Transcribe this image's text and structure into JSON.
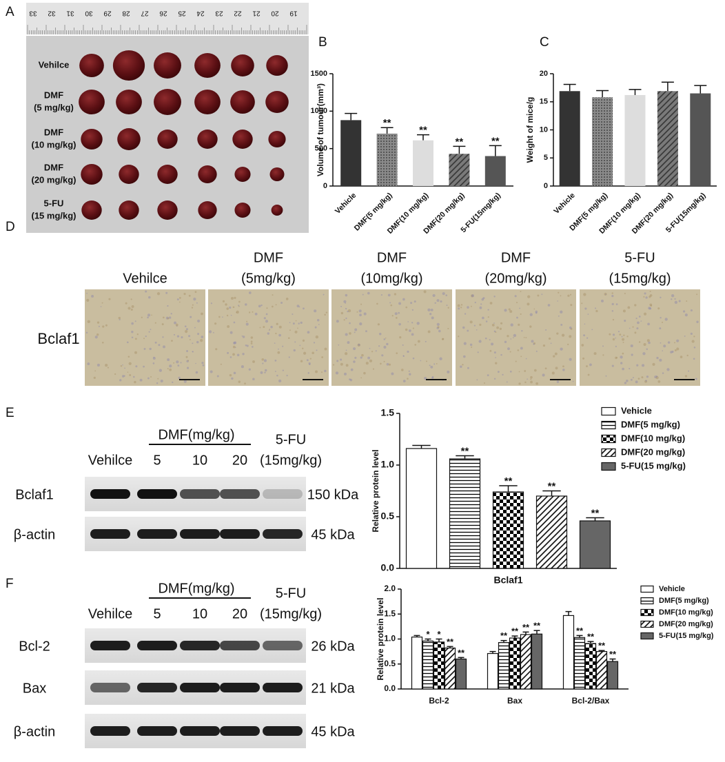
{
  "panel_labels": [
    "A",
    "B",
    "C",
    "D",
    "E",
    "F"
  ],
  "panel_a": {
    "ruler": [
      "33",
      "32",
      "31",
      "30",
      "29",
      "28",
      "27",
      "26",
      "25",
      "24",
      "23",
      "22",
      "21",
      "20",
      "19"
    ],
    "rows": [
      [
        "Vehilce"
      ],
      [
        "DMF",
        "(5 mg/kg)"
      ],
      [
        "DMF",
        "(10 mg/kg)"
      ],
      [
        "DMF",
        "(20 mg/kg)"
      ],
      [
        "5-FU",
        "(15 mg/kg)"
      ]
    ]
  },
  "panel_d": {
    "columns": [
      [
        "Vehilce"
      ],
      [
        "DMF",
        "(5mg/kg)"
      ],
      [
        "DMF",
        "(10mg/kg)"
      ],
      [
        "DMF",
        "(20mg/kg)"
      ],
      [
        "5-FU",
        "(15mg/kg)"
      ]
    ],
    "row_label": "Bclaf1"
  },
  "panel_e_blot": {
    "group": "DMF(mg/kg)",
    "lanes": [
      "Vehilce",
      "5",
      "10",
      "20"
    ],
    "last_lane": [
      "5-FU",
      "(15mg/kg)"
    ],
    "rows": [
      {
        "name": "Bclaf1",
        "size": "150 kDa"
      },
      {
        "name": "β-actin",
        "size": "45 kDa"
      }
    ]
  },
  "panel_f_blot": {
    "group": "DMF(mg/kg)",
    "lanes": [
      "Vehilce",
      "5",
      "10",
      "20"
    ],
    "last_lane": [
      "5-FU",
      "(15mg/kg)"
    ],
    "rows": [
      {
        "name": "Bcl-2",
        "size": "26 kDa"
      },
      {
        "name": "Bax",
        "size": "21 kDa"
      },
      {
        "name": "β-actin",
        "size": "45 kDa"
      }
    ]
  },
  "chart_data": [
    {
      "type": "bar",
      "ylabel": "Volume of tumour(mm³)",
      "categories": [
        "Vehicle",
        "DMF(5 mg/kg)",
        "DMF(10 mg/kg)",
        "DMF(20 mg/kg)",
        "5-FU(15mg/kg)"
      ],
      "values": [
        880,
        700,
        610,
        430,
        400
      ],
      "errors": [
        90,
        80,
        75,
        100,
        140
      ],
      "annotations": [
        null,
        "**",
        "**",
        "**",
        "**"
      ],
      "colors": [
        "#333333",
        "#8a8a8a",
        "#dddddd",
        "#7a7a7a",
        "#555555"
      ],
      "fill_styles": [
        "solid",
        "cross",
        "solid",
        "diag",
        "solid"
      ],
      "ylim": [
        0,
        1500
      ],
      "yticks": [
        0,
        500,
        1000,
        1500
      ]
    },
    {
      "type": "bar",
      "ylabel": "Weight of mice/g",
      "categories": [
        "Vehicle",
        "DMF(5 mg/kg)",
        "DMF(10 mg/kg)",
        "DMF(20 mg/kg)",
        "5-FU(15mg/kg)"
      ],
      "values": [
        16.9,
        15.8,
        16.2,
        16.9,
        16.5
      ],
      "errors": [
        1.2,
        1.2,
        1.0,
        1.6,
        1.4
      ],
      "colors": [
        "#333333",
        "#8a8a8a",
        "#dddddd",
        "#7a7a7a",
        "#555555"
      ],
      "fill_styles": [
        "solid",
        "cross",
        "solid",
        "diag",
        "solid"
      ],
      "ylim": [
        0,
        20
      ],
      "yticks": [
        0,
        5,
        10,
        15,
        20
      ]
    },
    {
      "type": "bar",
      "ylabel": "Relative protein level",
      "categories": [
        "Bclaf1"
      ],
      "legend": "right",
      "ylim": [
        0,
        1.5
      ],
      "yticks": [
        {
          "value": 0,
          "label": "0.0"
        },
        {
          "value": 0.5,
          "label": "0.5"
        },
        {
          "value": 1,
          "label": "1.0"
        },
        {
          "value": 1.5,
          "label": "1.5"
        }
      ],
      "series": [
        {
          "name": "Vehicle",
          "color": "#ffffff",
          "fill_style": "solid",
          "values": [
            1.16
          ],
          "errors": [
            0.03
          ],
          "annotations": [
            null
          ]
        },
        {
          "name": "DMF(5 mg/kg)",
          "color": "#ffffff",
          "fill_style": "hlines",
          "values": [
            1.06
          ],
          "errors": [
            0.03
          ],
          "annotations": [
            "**"
          ]
        },
        {
          "name": "DMF(10 mg/kg)",
          "color": "#ffffff",
          "fill_style": "checker",
          "values": [
            0.74
          ],
          "errors": [
            0.06
          ],
          "annotations": [
            "**"
          ]
        },
        {
          "name": "DMF(20 mg/kg)",
          "color": "#ffffff",
          "fill_style": "diag",
          "values": [
            0.7
          ],
          "errors": [
            0.05
          ],
          "annotations": [
            "**"
          ]
        },
        {
          "name": "5-FU(15 mg/kg)",
          "color": "#666666",
          "fill_style": "solid",
          "values": [
            0.46
          ],
          "errors": [
            0.03
          ],
          "annotations": [
            "**"
          ]
        }
      ]
    },
    {
      "type": "bar",
      "ylabel": "Relative protein level",
      "categories": [
        "Bcl-2",
        "Bax",
        "Bcl-2/Bax"
      ],
      "legend": "right",
      "ylim": [
        0,
        2
      ],
      "yticks": [
        {
          "value": 0,
          "label": "0.0"
        },
        {
          "value": 0.5,
          "label": "0.5"
        },
        {
          "value": 1,
          "label": "1.0"
        },
        {
          "value": 1.5,
          "label": "1.5"
        },
        {
          "value": 2,
          "label": "2.0"
        }
      ],
      "series": [
        {
          "name": "Vehicle",
          "color": "#ffffff",
          "fill_style": "solid",
          "values": [
            1.04,
            0.71,
            1.47
          ],
          "errors": [
            0.03,
            0.04,
            0.08
          ],
          "annotations": [
            null,
            null,
            null
          ]
        },
        {
          "name": "DMF(5 mg/kg)",
          "color": "#ffffff",
          "fill_style": "hlines",
          "values": [
            0.96,
            0.93,
            1.03
          ],
          "errors": [
            0.04,
            0.04,
            0.04
          ],
          "annotations": [
            "*",
            "**",
            "**"
          ]
        },
        {
          "name": "DMF(10 mg/kg)",
          "color": "#ffffff",
          "fill_style": "checker",
          "values": [
            0.94,
            1.02,
            0.91
          ],
          "errors": [
            0.06,
            0.04,
            0.04
          ],
          "annotations": [
            "*",
            "**",
            "**"
          ]
        },
        {
          "name": "DMF(20 mg/kg)",
          "color": "#ffffff",
          "fill_style": "diag",
          "values": [
            0.82,
            1.09,
            0.75
          ],
          "errors": [
            0.03,
            0.05,
            0.02
          ],
          "annotations": [
            "**",
            "**",
            "**"
          ]
        },
        {
          "name": "5-FU(15 mg/kg)",
          "color": "#666666",
          "fill_style": "solid",
          "values": [
            0.6,
            1.1,
            0.55
          ],
          "errors": [
            0.03,
            0.07,
            0.05
          ],
          "annotations": [
            "**",
            "**",
            "**"
          ]
        }
      ]
    }
  ]
}
